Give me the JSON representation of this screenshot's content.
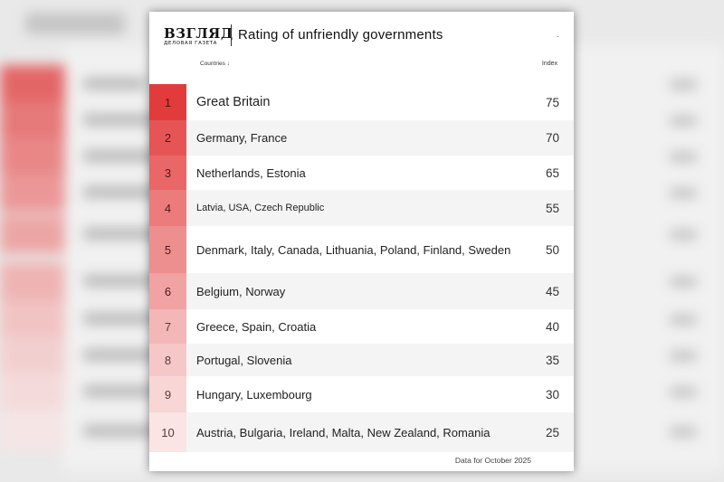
{
  "logo": {
    "main": "ВЗГЛЯД",
    "sub": "ДЕЛОВАЯ ГАЗЕТА"
  },
  "title": "Rating of unfriendly governments",
  "header_mark": ".",
  "columns": {
    "countries": "Countries ↓",
    "index": "Index"
  },
  "footer": "Data for October 2025",
  "colors": {
    "rank_scale": [
      "#e23b3b",
      "#e65555",
      "#e96767",
      "#ec7c7c",
      "#ee8f8f",
      "#f1a2a2",
      "#f4b7b7",
      "#f6c7c7",
      "#f8d6d6",
      "#fae4e4"
    ],
    "row_alt": "#f5f4f4"
  },
  "chart_data": {
    "type": "table",
    "title": "Rating of unfriendly governments",
    "columns": [
      "Countries",
      "Index"
    ],
    "rows": [
      {
        "rank": "1",
        "countries": "Great Britain",
        "index": 75
      },
      {
        "rank": "2",
        "countries": "Germany, France",
        "index": 70
      },
      {
        "rank": "3",
        "countries": "Netherlands, Estonia",
        "index": 65
      },
      {
        "rank": "4",
        "countries": "Latvia, USA, Czech Republic",
        "index": 55
      },
      {
        "rank": "5",
        "countries": "Denmark, Italy, Canada, Lithuania, Poland, Finland, Sweden",
        "index": 50
      },
      {
        "rank": "6",
        "countries": "Belgium, Norway",
        "index": 45
      },
      {
        "rank": "7",
        "countries": "Greece, Spain, Croatia",
        "index": 40
      },
      {
        "rank": "8",
        "countries": "Portugal, Slovenia",
        "index": 35
      },
      {
        "rank": "9",
        "countries": "Hungary, Luxembourg",
        "index": 30
      },
      {
        "rank": "10",
        "countries": "Austria, Bulgaria, Ireland, Malta, New Zealand, Romania",
        "index": 25
      }
    ]
  }
}
